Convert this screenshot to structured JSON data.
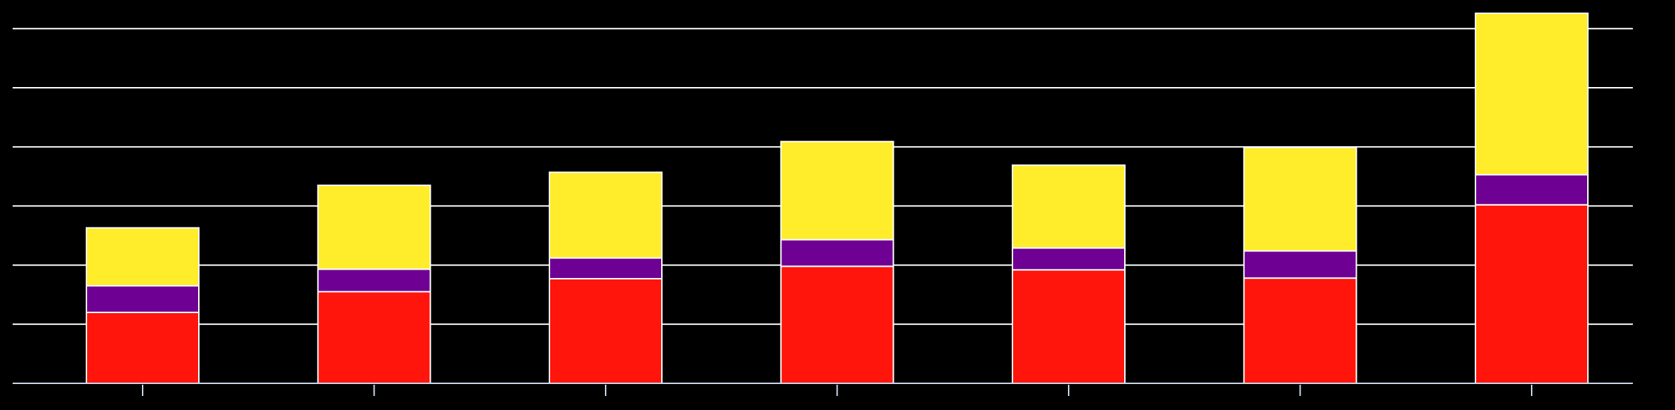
{
  "chart_data": {
    "type": "bar",
    "stacked": true,
    "title": "",
    "xlabel": "",
    "ylabel": "",
    "categories": [
      "",
      "",
      "",
      "",
      "",
      "",
      ""
    ],
    "ylim": [
      0,
      6.5
    ],
    "yticks": [
      0,
      1,
      2,
      3,
      4,
      5,
      6
    ],
    "grid": true,
    "legend": "none",
    "series": [
      {
        "values": [
          1.2,
          1.55,
          1.77,
          1.98,
          1.92,
          1.78,
          3.02
        ],
        "color": "#FF150C"
      },
      {
        "values": [
          0.45,
          0.38,
          0.35,
          0.45,
          0.37,
          0.46,
          0.51
        ],
        "color": "#6E0094"
      },
      {
        "values": [
          0.98,
          1.42,
          1.45,
          1.66,
          1.4,
          1.75,
          2.73
        ],
        "color": "#FFEC2A"
      }
    ],
    "colors": {
      "background": "#000000",
      "grid": "#FFFFFF",
      "axis": "#CCD6EB",
      "bar_edge": "#FFFFFF"
    }
  }
}
